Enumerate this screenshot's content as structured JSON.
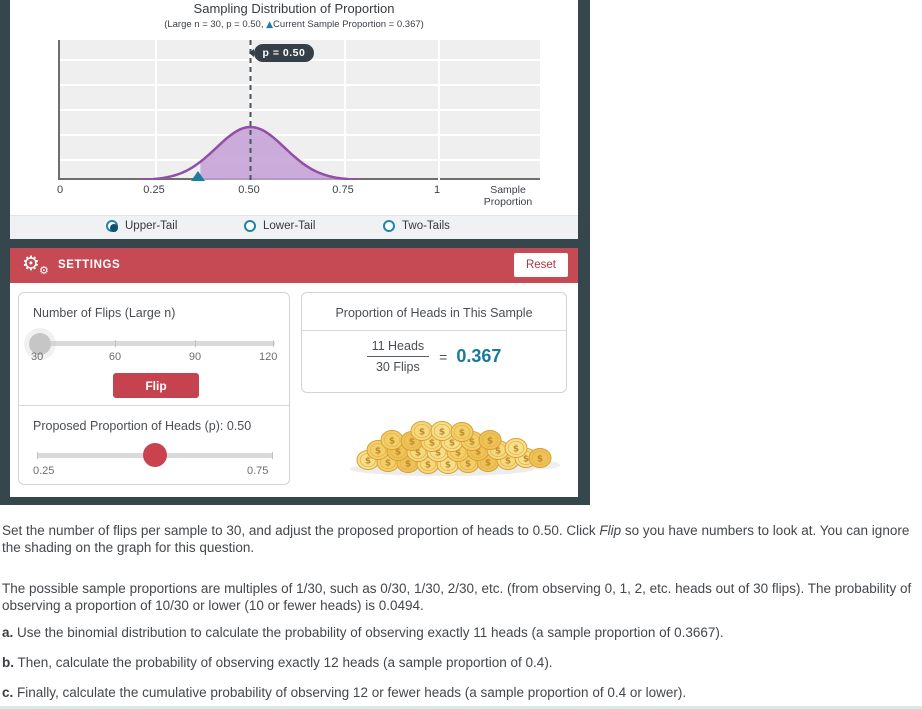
{
  "applet": {
    "chart": {
      "title": "Sampling Distribution of Proportion",
      "subtitle_prefix": "(Large n = 30, p = 0.50, ",
      "subtitle_marker": "▲",
      "subtitle_suffix": "Current Sample Proportion = 0.367)",
      "reference_label": "p = 0.50",
      "x_axis_label": "Sample Proportion",
      "x_ticks": [
        {
          "label": "0",
          "value": 0
        },
        {
          "label": "0.25",
          "value": 0.25
        },
        {
          "label": "0.50",
          "value": 0.5
        },
        {
          "label": "0.75",
          "value": 0.75
        },
        {
          "label": "1",
          "value": 1
        }
      ],
      "chart_data": {
        "type": "area",
        "distribution": "normal",
        "mean": 0.5,
        "sd": 0.091,
        "n": 30,
        "p": 0.5,
        "current_sample_proportion": 0.367,
        "shaded_region": "upper-tail from 0.367 under the curve",
        "reference_line": {
          "x": 0.5,
          "label": "p = 0.50"
        },
        "marker": {
          "x": 0.367,
          "symbol": "triangle-up",
          "color": "#1b7f9e"
        },
        "title": "Sampling Distribution of Proportion",
        "subtitle": "(Large n = 30, p = 0.50, ▲ Current Sample Proportion = 0.367)",
        "xlabel": "Sample Proportion",
        "xlim": [
          0,
          1.28
        ],
        "x_tick_values": [
          0,
          0.25,
          0.5,
          0.75,
          1
        ],
        "grid": true,
        "curve_visible_range": [
          0.21,
          0.79
        ]
      }
    },
    "tail_options": [
      {
        "label": "Upper-Tail",
        "selected": true
      },
      {
        "label": "Lower-Tail",
        "selected": false
      },
      {
        "label": "Two-Tails",
        "selected": false
      }
    ],
    "settings": {
      "header": "SETTINGS",
      "reset_label": "Reset",
      "flips": {
        "label": "Number of Flips (Large n)",
        "tick_labels": [
          "30",
          "60",
          "90",
          "120"
        ],
        "value": 30,
        "flip_button_label": "Flip"
      },
      "proposed": {
        "label": "Proposed Proportion of Heads (p): 0.50",
        "min_label": "0.25",
        "max_label": "0.75",
        "value": 0.5
      },
      "sample": {
        "title": "Proportion of Heads in This Sample",
        "numerator": "11 Heads",
        "denominator": "30 Flips",
        "equals_sign": "=",
        "value": "0.367"
      }
    }
  },
  "instructions": {
    "p1_before": "Set the number of flips per sample to 30, and adjust the proposed proportion of heads to 0.50. Click ",
    "p1_italic": "Flip",
    "p1_after": " so you have numbers to look at. You can ignore the shading on the graph for this question.",
    "p2": "The possible sample proportions are multiples of 1/30, such as 0/30, 1/30, 2/30, etc. (from observing 0, 1, 2, etc. heads out of 30 flips). The probability of observing a proportion of 10/30 or lower (10 or fewer heads) is 0.0494.",
    "items": [
      {
        "label": "a.",
        "text": " Use the binomial distribution to calculate the probability of observing exactly 11 heads (a sample proportion of 0.3667)."
      },
      {
        "label": "b.",
        "text": " Then, calculate the probability of observing exactly 12 heads (a sample proportion of 0.4)."
      },
      {
        "label": "c.",
        "text": " Finally, calculate the cumulative probability of observing 12 or fewer heads (a sample proportion of 0.4 or lower)."
      }
    ]
  },
  "colors": {
    "frame": "#35464c",
    "accent_red": "#c54a54",
    "accent_teal": "#1b7f9e",
    "curve_stroke": "#9150a5",
    "curve_fill": "#c49fd6",
    "value_teal": "#17799c"
  }
}
